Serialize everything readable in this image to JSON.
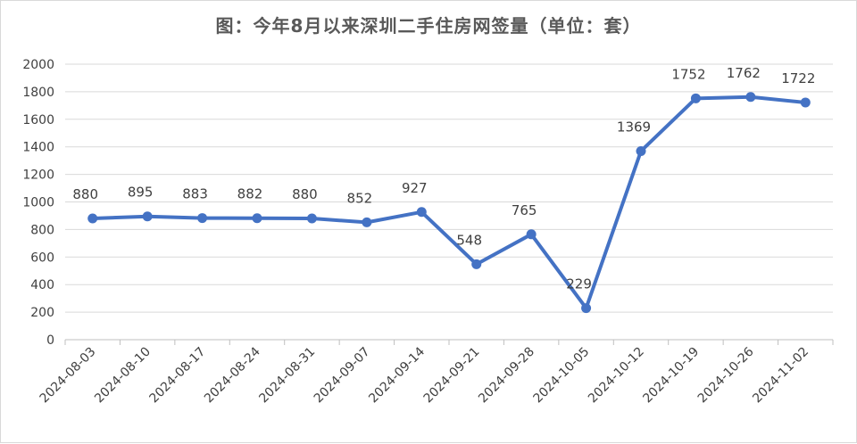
{
  "chart_data": {
    "type": "line",
    "title": "图：今年8月以来深圳二手住房网签量（单位：套）",
    "xlabel": "",
    "ylabel": "",
    "categories": [
      "2024-08-03",
      "2024-08-10",
      "2024-08-17",
      "2024-08-24",
      "2024-08-31",
      "2024-09-07",
      "2024-09-14",
      "2024-09-21",
      "2024-09-28",
      "2024-10-05",
      "2024-10-12",
      "2024-10-19",
      "2024-10-26",
      "2024-11-02"
    ],
    "values": [
      880,
      895,
      883,
      882,
      880,
      852,
      927,
      548,
      765,
      229,
      1369,
      1752,
      1762,
      1722
    ],
    "ylim": [
      0,
      2000
    ],
    "yticks": [
      0,
      200,
      400,
      600,
      800,
      1000,
      1200,
      1400,
      1600,
      1800,
      2000
    ],
    "grid": true,
    "legend": "none",
    "colors": {
      "series": "#4472c4",
      "grid": "#d9d9d9",
      "axis": "#bfbfbf",
      "text": "#404040",
      "title": "#595959"
    }
  }
}
